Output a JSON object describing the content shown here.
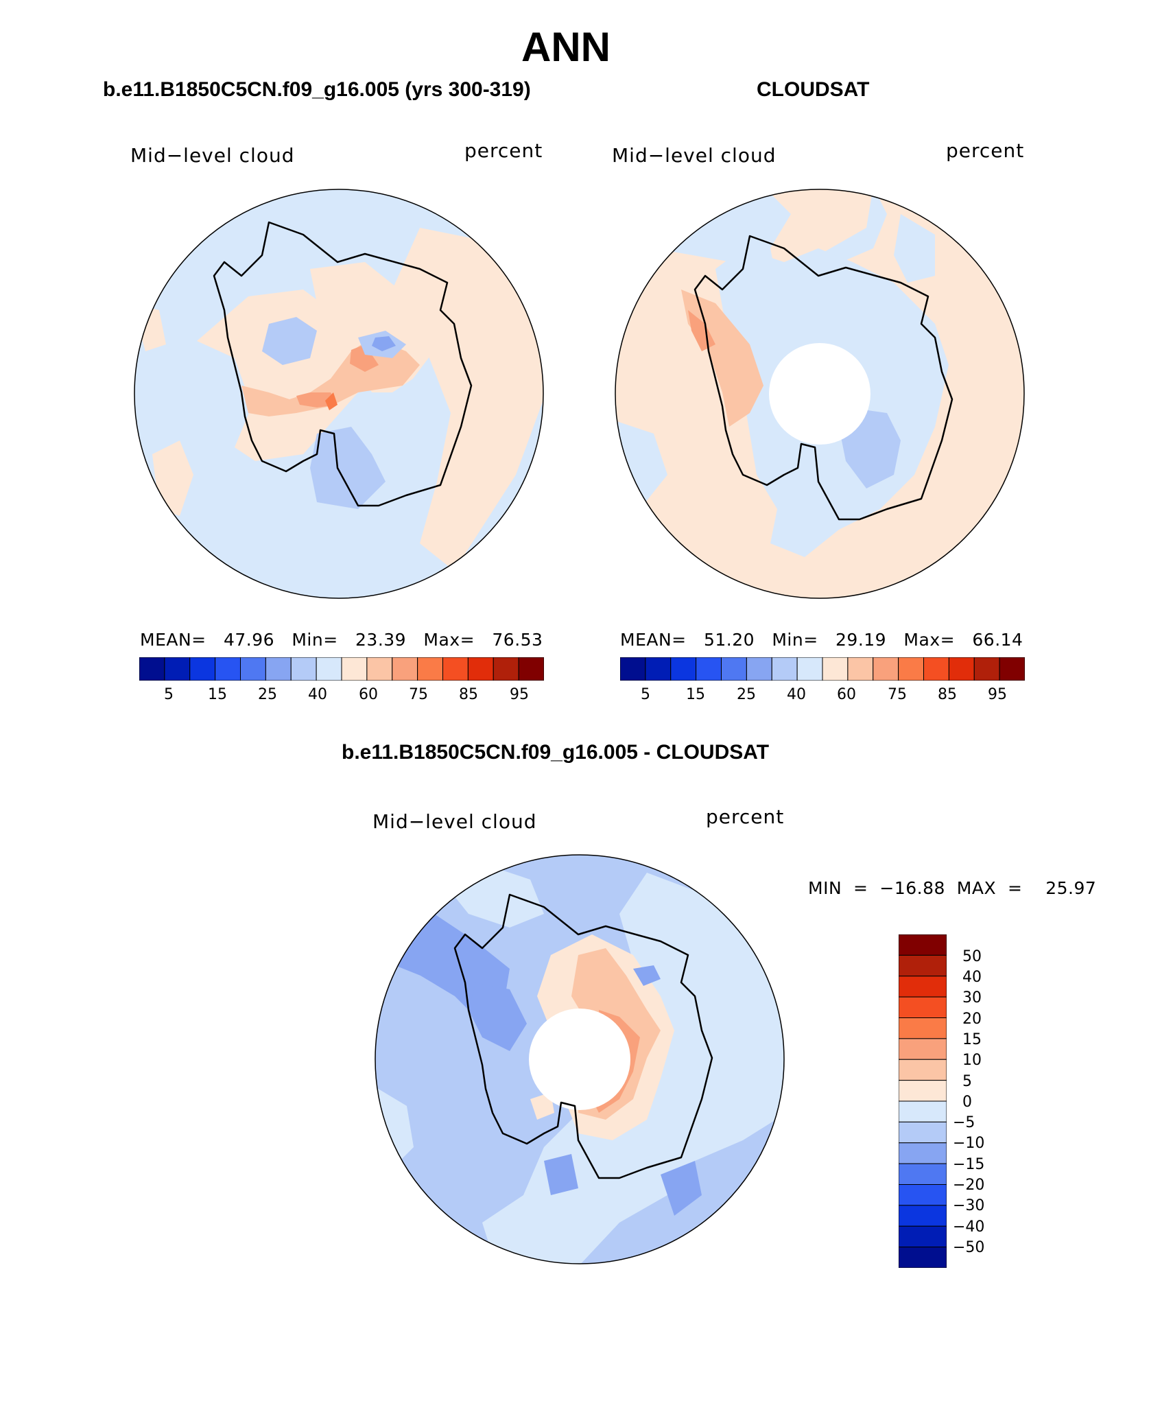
{
  "figure": {
    "title": "ANN",
    "colors": {
      "blues": [
        "#000e8f",
        "#001db5",
        "#0b36e0",
        "#2754f2",
        "#4f78f2",
        "#87a5f2",
        "#b4cbf7",
        "#d7e8fb"
      ],
      "reds": [
        "#fde7d6",
        "#fbc5a6",
        "#f9a17c",
        "#fa7b47",
        "#f44f22",
        "#e12d0a",
        "#b0200a",
        "#800000"
      ],
      "coast": "#000000"
    }
  },
  "panels": [
    {
      "title": "b.e11.B1850C5CN.f09_g16.005 (yrs 300-319)",
      "left_label": "Mid−level  cloud",
      "right_label": "percent",
      "stats": "MEAN=   47.96   Min=   23.39   Max=   76.53",
      "colorbar_ticks": [
        "5",
        "15",
        "25",
        "40",
        "60",
        "75",
        "85",
        "95"
      ]
    },
    {
      "title": "CLOUDSAT",
      "left_label": "Mid−level  cloud",
      "right_label": "percent",
      "stats": "MEAN=   51.20   Min=   29.19   Max=   66.14",
      "colorbar_ticks": [
        "5",
        "15",
        "25",
        "40",
        "60",
        "75",
        "85",
        "95"
      ],
      "missing_pole": true
    },
    {
      "title": "b.e11.B1850C5CN.f09_g16.005 - CLOUDSAT",
      "left_label": "Mid−level  cloud",
      "right_label": "percent",
      "stats": "MIN  =  −16.88  MAX  =    25.97",
      "colorbar_ticks": [
        "50",
        "40",
        "30",
        "20",
        "15",
        "10",
        "5",
        "0",
        "−5",
        "−10",
        "−15",
        "−20",
        "−30",
        "−40",
        "−50"
      ],
      "missing_pole": true
    }
  ]
}
